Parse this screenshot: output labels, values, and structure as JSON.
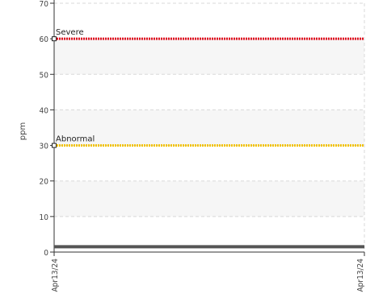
{
  "chart_data": {
    "type": "line",
    "title": "",
    "xlabel": "",
    "ylabel": "ppm",
    "ylim": [
      0,
      70
    ],
    "yticks": [
      0,
      10,
      20,
      30,
      40,
      50,
      60,
      70
    ],
    "x": [
      "Apr13/24",
      "Apr13/24"
    ],
    "grid": true,
    "series": [
      {
        "values": [
          1.5,
          1.5
        ],
        "color": "#555555"
      }
    ],
    "thresholds": [
      {
        "name": "Severe",
        "value": 60,
        "color": "#e01020"
      },
      {
        "name": "Abnormal",
        "value": 30,
        "color": "#f2c200"
      }
    ]
  }
}
